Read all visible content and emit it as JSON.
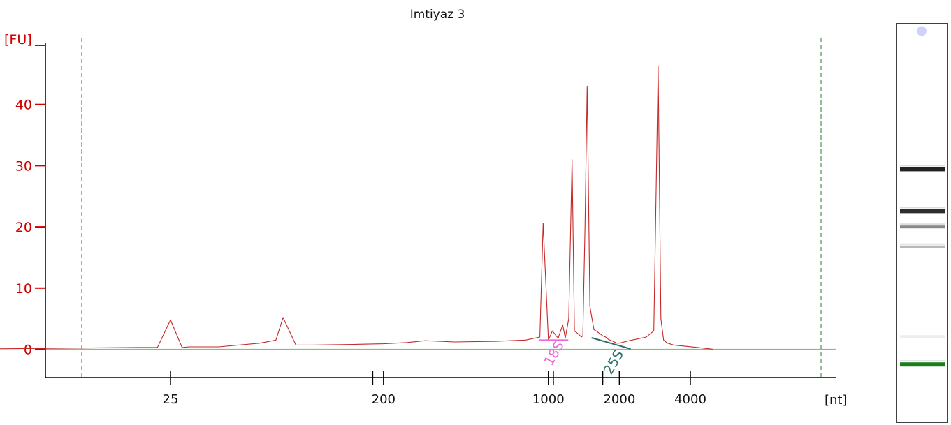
{
  "chart_data": {
    "type": "line",
    "title": "Imtiyaz 3",
    "xlabel": "[nt]",
    "ylabel": "[FU]",
    "x_scale": "log",
    "ylim": [
      -5,
      50
    ],
    "yticks": [
      0,
      10,
      20,
      30,
      40
    ],
    "xticks": [
      "25",
      "200",
      "1000",
      "2000",
      "4000"
    ],
    "grid": false,
    "series": [
      {
        "color": "#c62828",
        "x": [
          3,
          18,
          22,
          25,
          28,
          30,
          40,
          60,
          70,
          75,
          85,
          100,
          150,
          200,
          250,
          300,
          400,
          600,
          800,
          920,
          950,
          1000,
          1040,
          1100,
          1150,
          1180,
          1220,
          1260,
          1290,
          1340,
          1380,
          1400,
          1430,
          1460,
          1500,
          1560,
          1620,
          1660,
          1700,
          1750,
          1800,
          1880,
          1950,
          2000,
          2200,
          2600,
          2800,
          2920,
          3000,
          3080,
          3200,
          3400,
          3800,
          4300,
          5000
        ],
        "y": [
          0.0,
          0.3,
          0.3,
          4.8,
          0.3,
          0.4,
          0.4,
          1.0,
          1.5,
          5.2,
          0.7,
          0.7,
          0.8,
          0.9,
          1.1,
          1.4,
          1.2,
          1.3,
          1.5,
          2.0,
          20.6,
          1.5,
          3.0,
          1.8,
          4.0,
          1.8,
          5.0,
          31.0,
          3.0,
          2.5,
          2.0,
          2.2,
          20.0,
          43.0,
          7.0,
          3.2,
          2.8,
          2.5,
          2.2,
          2.0,
          1.6,
          1.3,
          1.0,
          1.0,
          1.4,
          2.0,
          3.0,
          46.2,
          5.0,
          1.5,
          1.0,
          0.7,
          0.5,
          0.3,
          0.0
        ]
      }
    ],
    "markers": [
      {
        "label": "18S",
        "color": "#ee66dd",
        "x": 990,
        "y": 1.5
      },
      {
        "label": "25S",
        "color": "#2f6f6a",
        "x": 1700,
        "y": 1.2
      }
    ],
    "reference_lines": {
      "baseline_color": "#80c080",
      "bounds_color": "#2e7d32"
    },
    "gel_lane_bands": [
      {
        "position": 0.05,
        "color": "#d0d0ff",
        "intensity": 0.5
      },
      {
        "position": 0.365,
        "color": "#222222",
        "intensity": 1.0
      },
      {
        "position": 0.47,
        "color": "#222222",
        "intensity": 0.95
      },
      {
        "position": 0.51,
        "color": "#555555",
        "intensity": 0.7
      },
      {
        "position": 0.56,
        "color": "#888888",
        "intensity": 0.6
      },
      {
        "position": 0.785,
        "color": "#cccccc",
        "intensity": 0.3
      },
      {
        "position": 0.855,
        "color": "#1a7f1a",
        "intensity": 1.0
      }
    ]
  }
}
